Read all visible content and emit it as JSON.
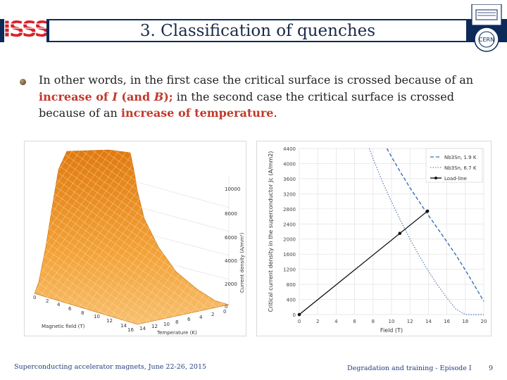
{
  "header": {
    "title": "3. Classification of quenches",
    "logo_left_text": "ISSS",
    "logo_right_text": "CERN",
    "bar_color": "#0b2a5a"
  },
  "body": {
    "part1": "In other words, in the first case the critical surface is crossed because of an ",
    "hl1_pre": "increase of ",
    "hl1_i": "I",
    "hl1_mid": " (and ",
    "hl1_b": "B",
    "hl1_post": ");",
    "part2": " in the second case the critical surface is crossed because of an ",
    "hl2": "increase of temperature",
    "part3": ".",
    "highlight_color": "#c0392b"
  },
  "left_chart": {
    "xlabel": "Magnetic field (T)",
    "ylabel": "Temperature (K)",
    "zlabel": "Current density (A/mm²)",
    "field_ticks": [
      "0",
      "2",
      "4",
      "6",
      "8",
      "10",
      "12",
      "14"
    ],
    "temp_ticks": [
      "0",
      "2",
      "4",
      "6",
      "8",
      "10",
      "12",
      "14",
      "16"
    ],
    "z_ticks": [
      "0",
      "2000",
      "4000",
      "6000",
      "8000",
      "10000"
    ],
    "surface_color": "#f0a030"
  },
  "chart_data": {
    "type": "line",
    "xlabel": "Field (T)",
    "ylabel": "Critical current density in the superconductor Jc (A/mm2)",
    "xlim": [
      0,
      20
    ],
    "ylim": [
      0,
      4400
    ],
    "xticks": [
      0,
      2,
      4,
      6,
      8,
      10,
      12,
      14,
      16,
      18,
      20
    ],
    "yticks": [
      0,
      400,
      800,
      1200,
      1600,
      2000,
      2400,
      2800,
      3200,
      3600,
      4000,
      4400
    ],
    "grid": true,
    "legend": "top-right",
    "series": [
      {
        "name": "Nb3Sn, 1.9 K",
        "color": "#3a6fb0",
        "style": "dashed",
        "x": [
          9.5,
          10,
          11,
          12,
          13,
          14,
          15,
          16,
          17,
          18,
          19,
          20
        ],
        "y": [
          4400,
          4180,
          3760,
          3360,
          2990,
          2630,
          2280,
          1930,
          1570,
          1180,
          770,
          350
        ]
      },
      {
        "name": "Nb3Sn, 6.7 K",
        "color": "#6a8fbf",
        "style": "dotted",
        "x": [
          7.6,
          8,
          9,
          10,
          11,
          12,
          13,
          14,
          15,
          16,
          17,
          18,
          19,
          20
        ],
        "y": [
          4400,
          4130,
          3530,
          2990,
          2480,
          2000,
          1560,
          1150,
          780,
          440,
          140,
          0,
          0,
          0
        ]
      },
      {
        "name": "Load-line",
        "color": "#000000",
        "style": "solid",
        "x": [
          0,
          10.9,
          13.9
        ],
        "y": [
          0,
          2150,
          2740
        ]
      }
    ]
  },
  "footer": {
    "left": "Superconducting accelerator magnets, June 22-26, 2015",
    "mid": "Degradation and training - Episode I",
    "page": "9"
  }
}
